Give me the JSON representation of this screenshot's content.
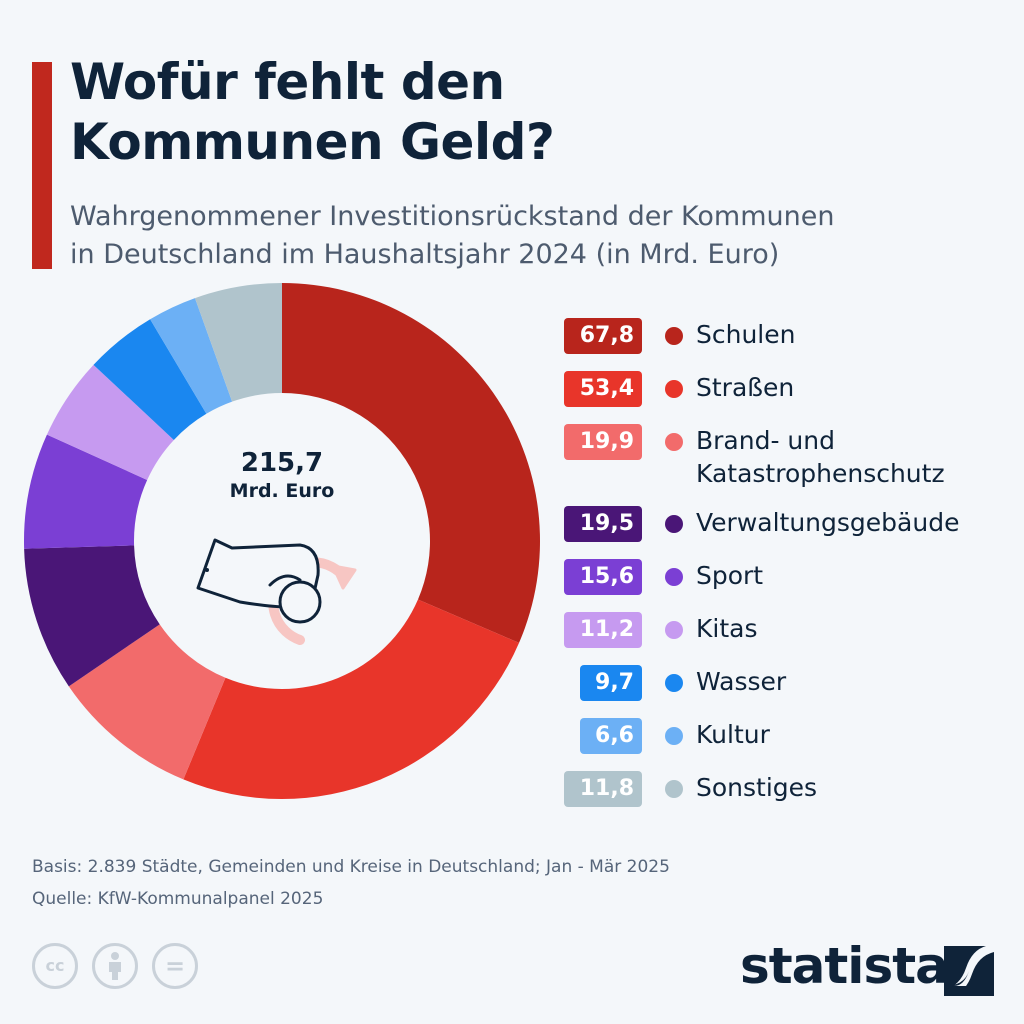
{
  "header": {
    "title_line1": "Wofür fehlt den",
    "title_line2": "Kommunen Geld?",
    "subtitle_line1": "Wahrgenommener Investitionsrückstand der Kommunen",
    "subtitle_line2": "in Deutschland im Haushaltsjahr 2024 (in Mrd. Euro)"
  },
  "center": {
    "total": "215,7",
    "unit": "Mrd. Euro",
    "icon": "hand-coin-icon"
  },
  "chart_data": {
    "type": "pie",
    "variant": "donut",
    "title": "Wofür fehlt den Kommunen Geld?",
    "total": 215.7,
    "unit": "Mrd. Euro",
    "legend_placement": "right",
    "slices": [
      {
        "label": "Schulen",
        "value": 67.8,
        "display": "67,8",
        "color": "#b8251c"
      },
      {
        "label": "Straßen",
        "value": 53.4,
        "display": "53,4",
        "color": "#e8352a"
      },
      {
        "label": "Brand- und Katastrophenschutz",
        "value": 19.9,
        "display": "19,9",
        "color": "#f26b6b"
      },
      {
        "label": "Verwaltungsgebäude",
        "value": 19.5,
        "display": "19,5",
        "color": "#4a1677"
      },
      {
        "label": "Sport",
        "value": 15.6,
        "display": "15,6",
        "color": "#7b3fd4"
      },
      {
        "label": "Kitas",
        "value": 11.2,
        "display": "11,2",
        "color": "#c69af0"
      },
      {
        "label": "Wasser",
        "value": 9.7,
        "display": "9,7",
        "color": "#1a87f0"
      },
      {
        "label": "Kultur",
        "value": 6.6,
        "display": "6,6",
        "color": "#6cb0f5"
      },
      {
        "label": "Sonstiges",
        "value": 11.8,
        "display": "11,8",
        "color": "#b0c4cc"
      }
    ]
  },
  "legend_lines": {
    "brand_line1": "Brand- und",
    "brand_line2": "Katastrophenschutz"
  },
  "footer": {
    "basis": "Basis: 2.839 Städte, Gemeinden und Kreise in Deutschland; Jan - Mär 2025",
    "source": "Quelle: KfW-Kommunalpanel 2025",
    "license_icons": [
      "cc",
      "by",
      "nd"
    ],
    "cc_label": "cc",
    "nd_label": "=",
    "logo": "statista"
  }
}
